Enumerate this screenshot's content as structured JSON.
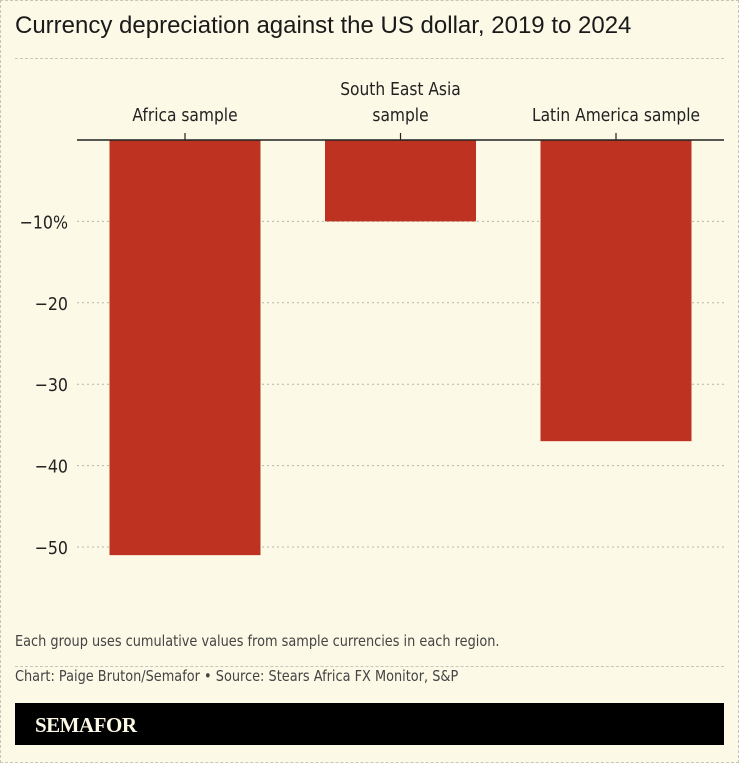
{
  "title": "Currency depreciation against the US dollar, 2019 to 2024",
  "chart_data": {
    "type": "bar",
    "categories": [
      "Africa sample",
      "South East Asia sample",
      "Latin America sample"
    ],
    "category_label_lines": [
      [
        "Africa sample"
      ],
      [
        "South East Asia",
        "sample"
      ],
      [
        "Latin America sample"
      ]
    ],
    "values": [
      -51,
      -10,
      -37
    ],
    "ylim": [
      -55,
      0
    ],
    "yticks": [
      -10,
      -20,
      -30,
      -40,
      -50
    ],
    "ytick_labels": [
      "−10%",
      "−20",
      "−30",
      "−40",
      "−50"
    ],
    "grid": true,
    "bar_color": "#bd3221",
    "xlabel": "",
    "ylabel": ""
  },
  "footer": {
    "note": "Each group uses cumulative values from sample currencies in each region.",
    "credit": "Chart: Paige Bruton/Semafor • Source: Stears Africa FX Monitor, S&P",
    "logo": "SEMAFOR"
  }
}
